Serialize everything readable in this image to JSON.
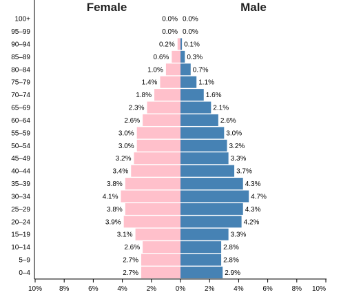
{
  "chart_data": {
    "type": "bar",
    "orientation": "horizontal",
    "labels": {
      "female": "Female",
      "male": "Male"
    },
    "categories": [
      "0–4",
      "5–9",
      "10–14",
      "15–19",
      "20–24",
      "25–29",
      "30–34",
      "35–39",
      "40–44",
      "45–49",
      "50–54",
      "55–59",
      "60–64",
      "65–69",
      "70–74",
      "75–79",
      "80–84",
      "85–89",
      "90–94",
      "95–99",
      "100+"
    ],
    "series": [
      {
        "name": "Female",
        "values": [
          2.7,
          2.7,
          2.6,
          3.1,
          3.9,
          3.8,
          4.1,
          3.8,
          3.4,
          3.2,
          3.0,
          3.0,
          2.6,
          2.3,
          1.8,
          1.4,
          1.0,
          0.6,
          0.2,
          0.0,
          0.0
        ],
        "labels": [
          "2.7%",
          "2.7%",
          "2.6%",
          "3.1%",
          "3.9%",
          "3.8%",
          "4.1%",
          "3.8%",
          "3.4%",
          "3.2%",
          "3.0%",
          "3.0%",
          "2.6%",
          "2.3%",
          "1.8%",
          "1.4%",
          "1.0%",
          "0.6%",
          "0.2%",
          "0.0%",
          "0.0%"
        ]
      },
      {
        "name": "Male",
        "values": [
          2.9,
          2.8,
          2.8,
          3.3,
          4.2,
          4.3,
          4.7,
          4.3,
          3.7,
          3.3,
          3.2,
          3.0,
          2.6,
          2.1,
          1.6,
          1.1,
          0.7,
          0.3,
          0.1,
          0.0,
          0.0
        ],
        "labels": [
          "2.9%",
          "2.8%",
          "2.8%",
          "3.3%",
          "4.2%",
          "4.3%",
          "4.7%",
          "4.3%",
          "3.7%",
          "3.3%",
          "3.2%",
          "3.0%",
          "2.6%",
          "2.1%",
          "1.6%",
          "1.1%",
          "0.7%",
          "0.3%",
          "0.1%",
          "0.0%",
          "0.0%"
        ]
      }
    ],
    "xlim": [
      -10,
      10
    ],
    "xticks": [
      "10%",
      "8%",
      "6%",
      "4%",
      "2%",
      "0%",
      "2%",
      "4%",
      "6%",
      "8%",
      "10%"
    ],
    "colors": {
      "female": "#ffc0cb",
      "male": "#4682b4"
    },
    "grid": false
  }
}
